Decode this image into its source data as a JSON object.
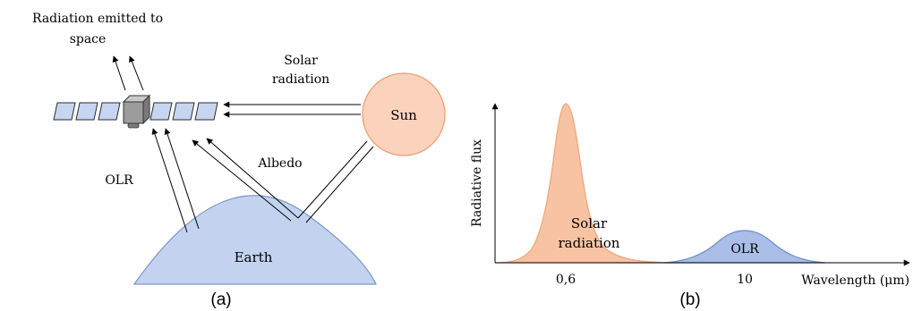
{
  "panel_a": {
    "caption": "(a)",
    "space_label_line1": "Radiation emitted to",
    "space_label_line2": "space",
    "solar_label_line1": "Solar",
    "solar_label_line2": "radiation",
    "sun_label": "Sun",
    "albedo_label": "Albedo",
    "olr_label": "OLR",
    "earth_label": "Earth",
    "colors": {
      "sun_fill": "#fbd3bc",
      "sun_stroke": "#ef9a6b",
      "earth_fill": "#c3d3ef",
      "earth_stroke": "#7d97c8",
      "panel_fill": "#c6d6f1",
      "satellite_body": "#9c9c9c"
    }
  },
  "panel_b": {
    "caption": "(b)",
    "ylabel": "Radiative flux",
    "xlabel": "Wavelength (μm)",
    "solar_label_line1": "Solar",
    "solar_label_line2": "radiation",
    "olr_label": "OLR",
    "tick_solar": "0,6",
    "tick_olr": "10",
    "colors": {
      "solar_fill": "#f8c3a3",
      "solar_stroke": "#eea57a",
      "olr_fill": "#a9bde6",
      "olr_stroke": "#6d8ccb"
    }
  }
}
